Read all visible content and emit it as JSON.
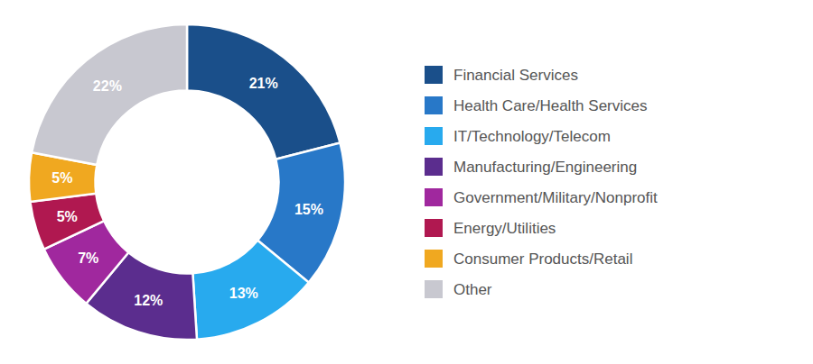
{
  "chart_data": {
    "type": "donut",
    "categories": [
      "Financial Services",
      "Health Care/Health Services",
      "IT/Technology/Telecom",
      "Manufacturing/Engineering",
      "Government/Military/Nonprofit",
      "Energy/Utilities",
      "Consumer Products/Retail",
      "Other"
    ],
    "values": [
      21,
      15,
      13,
      12,
      7,
      5,
      5,
      22
    ],
    "value_labels": [
      "21%",
      "15%",
      "13%",
      "12%",
      "7%",
      "5%",
      "5%",
      "22%"
    ],
    "colors": [
      "#1a4f8a",
      "#2878c8",
      "#28aaee",
      "#5b2d8e",
      "#a0289e",
      "#b01850",
      "#f0a820",
      "#c8c8d0"
    ],
    "data_labels": true,
    "legend": "right"
  }
}
